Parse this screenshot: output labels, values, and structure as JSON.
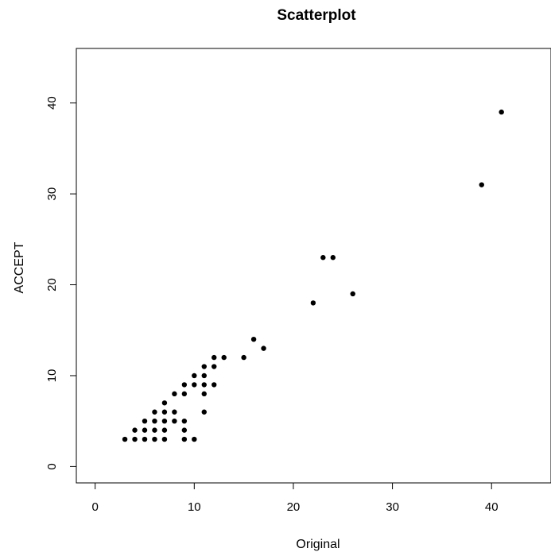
{
  "chart_data": {
    "type": "scatter",
    "title": "Scatterplot",
    "xlabel": "Original",
    "ylabel": "ACCEPT",
    "xlim": [
      -1.9,
      46
    ],
    "ylim": [
      -1.8,
      46
    ],
    "xticks": [
      0,
      10,
      20,
      30,
      40
    ],
    "yticks": [
      0,
      10,
      20,
      30,
      40
    ],
    "xtick_labels": [
      "0",
      "10",
      "20",
      "30",
      "40"
    ],
    "ytick_labels": [
      "0",
      "10",
      "20",
      "30",
      "40"
    ],
    "grid": false,
    "point_color": "#000000",
    "series": [
      {
        "x": [
          3,
          4,
          4,
          5,
          5,
          5,
          6,
          6,
          6,
          6,
          7,
          7,
          7,
          7,
          7,
          8,
          8,
          8,
          9,
          9,
          9,
          9,
          9,
          10,
          10,
          10,
          11,
          11,
          11,
          11,
          11,
          12,
          12,
          12,
          13,
          15,
          16,
          17,
          22,
          23,
          24,
          26,
          39,
          41
        ],
        "y": [
          3,
          3,
          4,
          3,
          4,
          5,
          3,
          4,
          5,
          6,
          3,
          4,
          5,
          6,
          7,
          5,
          6,
          8,
          3,
          4,
          5,
          8,
          9,
          3,
          9,
          10,
          6,
          8,
          9,
          10,
          11,
          9,
          11,
          12,
          12,
          12,
          14,
          13,
          18,
          23,
          23,
          19,
          31,
          39
        ]
      }
    ]
  }
}
